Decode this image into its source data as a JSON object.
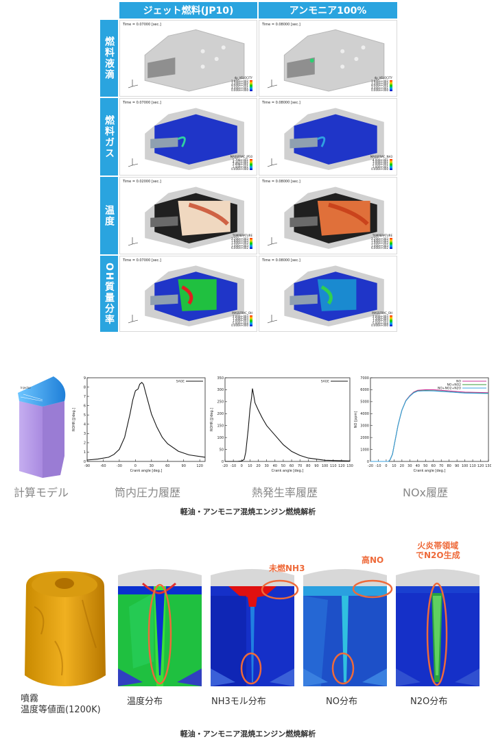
{
  "grid": {
    "columns": [
      "ジェット燃料(JP10)",
      "アンモニア100%"
    ],
    "rows": [
      {
        "label": "燃料液滴",
        "times": [
          "Time = 0.07000 [sec.]",
          "Time = 0.08000 [sec.]"
        ],
        "legend_title": "dp_VELOCITY",
        "legend_values": [
          [
            "1.600e+002",
            "1.200e+002",
            "8.000e+001",
            "4.000e+001",
            "0.000e+000"
          ],
          [
            "1.600e+002",
            "1.200e+002",
            "8.000e+001",
            "4.000e+001",
            "0.000e+000"
          ]
        ]
      },
      {
        "label": "燃料ガス",
        "times": [
          "Time = 0.07000 [sec.]",
          "Time = 0.08000 [sec.]"
        ],
        "legend_titles": [
          "MASSFRAC_JP10",
          "MASSFRAC_NH3"
        ],
        "legend_values": [
          [
            "5.790e-001",
            "4.347e-001",
            "2.898e-001",
            "1.449e-001",
            "0.000e+000"
          ],
          [
            "4.000e-001",
            "3.000e-001",
            "2.000e-001",
            "1.000e-001",
            "0.000e+000"
          ]
        ]
      },
      {
        "label": "温度",
        "times": [
          "Time = 0.02000 [sec.]",
          "Time = 0.08000 [sec.]"
        ],
        "legend_title": "TEMPERATURE",
        "legend_values": [
          [
            "2.200e+003",
            "1.800e+003",
            "1.400e+003",
            "1.000e+003",
            "6.000e+002"
          ],
          [
            "2.200e+003",
            "1.800e+003",
            "1.400e+003",
            "1.000e+003",
            "6.000e+002"
          ]
        ]
      },
      {
        "label": "OH質量分率",
        "times": [
          "Time = 0.07000 [sec.]",
          "Time = 0.08000 [sec.]"
        ],
        "legend_title": "MASSFRAC_OH",
        "legend_values": [
          [
            "2.000e-003",
            "1.500e-003",
            "1.000e-003",
            "5.000e-004",
            "0.000e+000"
          ],
          [
            "2.000e-003",
            "1.500e-003",
            "1.000e-003",
            "5.000e-004",
            "0.000e+000"
          ]
        ]
      }
    ]
  },
  "middle": {
    "captions": [
      "計算モデル",
      "筒内圧力履歴",
      "熱発生率履歴",
      "NOx履歴"
    ],
    "title": "軽油・アンモニア混焼エンジン燃焼解析",
    "colors": {
      "model_face": "#b99ae6",
      "model_top": "#2f8ee6"
    }
  },
  "chart_data": [
    {
      "type": "line",
      "xlabel": "Crank angle [deg.]",
      "ylabel": "ROHR [J/deg.]",
      "xlim": [
        -90,
        130
      ],
      "ylim": [
        0,
        9
      ],
      "xticks": [
        -90,
        -60,
        -30,
        0,
        30,
        60,
        90,
        120
      ],
      "yticks": [
        0,
        1,
        2,
        3,
        4,
        5,
        6,
        7,
        8,
        9
      ],
      "series": [
        {
          "name": "SAGE",
          "x": [
            -90,
            -70,
            -50,
            -40,
            -30,
            -20,
            -10,
            -5,
            0,
            5,
            8,
            12,
            15,
            20,
            30,
            40,
            50,
            60,
            80,
            100,
            130
          ],
          "y": [
            0.15,
            0.25,
            0.45,
            0.75,
            1.3,
            2.6,
            5.1,
            6.6,
            7.6,
            7.8,
            8.3,
            8.5,
            8.3,
            7.2,
            5.1,
            3.7,
            2.6,
            1.9,
            1.1,
            0.7,
            0.45
          ]
        }
      ]
    },
    {
      "type": "line",
      "xlabel": "Crank angle [deg.]",
      "ylabel": "ROHR [J/deg.]",
      "xlim": [
        -20,
        130
      ],
      "ylim": [
        0,
        350
      ],
      "xticks": [
        -20,
        -10,
        0,
        10,
        20,
        30,
        40,
        50,
        60,
        70,
        80,
        90,
        100,
        110,
        120,
        130
      ],
      "yticks": [
        0,
        50,
        100,
        150,
        200,
        250,
        300,
        350
      ],
      "series": [
        {
          "name": "SAGE",
          "x": [
            -20,
            -5,
            0,
            3,
            5,
            8,
            10,
            12,
            13,
            14,
            16,
            20,
            25,
            30,
            35,
            40,
            50,
            60,
            70,
            80,
            100,
            130
          ],
          "y": [
            0,
            0,
            2,
            8,
            40,
            140,
            220,
            270,
            305,
            285,
            245,
            215,
            180,
            150,
            130,
            110,
            70,
            42,
            25,
            14,
            5,
            2
          ]
        }
      ]
    },
    {
      "type": "line",
      "xlabel": "Crank angle [deg.]",
      "ylabel": "NO [ppm]",
      "xlim": [
        -20,
        130
      ],
      "ylim": [
        0,
        7000
      ],
      "xticks": [
        -20,
        -10,
        0,
        10,
        20,
        30,
        40,
        50,
        60,
        70,
        80,
        90,
        100,
        110,
        120,
        130
      ],
      "yticks": [
        0,
        1000,
        2000,
        3000,
        4000,
        5000,
        6000,
        7000
      ],
      "series": [
        {
          "name": "NO",
          "color": "#cc3399",
          "x": [
            -20,
            0,
            3,
            5,
            8,
            10,
            13,
            15,
            18,
            20,
            25,
            30,
            35,
            40,
            50,
            60,
            70,
            80,
            100,
            130
          ],
          "y": [
            0,
            0,
            0,
            150,
            600,
            1300,
            2300,
            3000,
            3800,
            4300,
            5100,
            5500,
            5800,
            5950,
            6000,
            6000,
            5950,
            5900,
            5800,
            5750
          ]
        },
        {
          "name": "NO+NO2",
          "color": "#3a9a3a",
          "x": [
            -20,
            0,
            3,
            5,
            8,
            10,
            13,
            15,
            18,
            20,
            25,
            30,
            35,
            40,
            50,
            60,
            70,
            80,
            100,
            130
          ],
          "y": [
            0,
            0,
            0,
            150,
            600,
            1300,
            2300,
            3000,
            3800,
            4300,
            5080,
            5470,
            5760,
            5900,
            5930,
            5920,
            5880,
            5830,
            5740,
            5700
          ]
        },
        {
          "name": "NO+NO2+N2O",
          "color": "#3aa0e0",
          "x": [
            -20,
            0,
            3,
            5,
            8,
            10,
            13,
            15,
            18,
            20,
            25,
            30,
            35,
            40,
            50,
            60,
            70,
            80,
            100,
            130
          ],
          "y": [
            0,
            0,
            0,
            150,
            600,
            1300,
            2300,
            3000,
            3800,
            4300,
            5060,
            5450,
            5740,
            5880,
            5910,
            5900,
            5860,
            5810,
            5720,
            5680
          ]
        }
      ]
    }
  ],
  "bottom": {
    "captions": [
      "噴霧\n温度等値面(1200K)",
      "温度分布",
      "NH3モル分布",
      "NO分布",
      "N2O分布"
    ],
    "annotations": [
      "未燃NH3",
      "高NO",
      "火炎帯領域\nでN2O生成"
    ],
    "title": "軽油・アンモニア混焼エンジン燃焼解析",
    "colors": {
      "annotation": "#ee6a3a"
    }
  }
}
